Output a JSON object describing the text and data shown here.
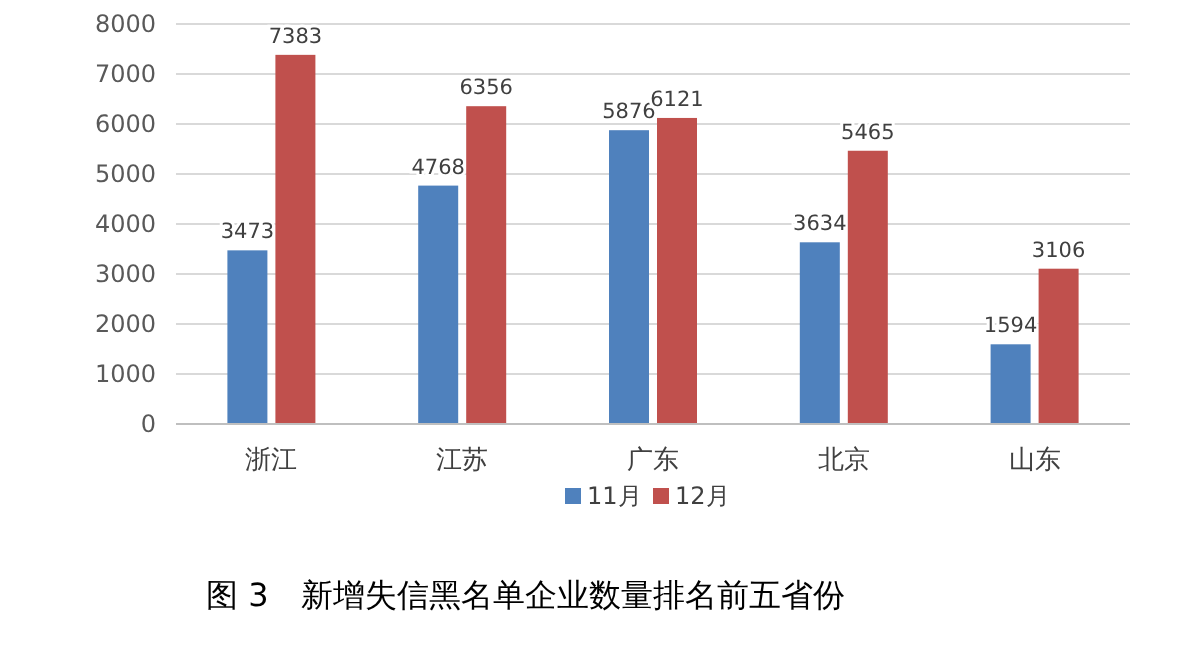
{
  "chart_data": {
    "type": "bar",
    "title": "图 3　新增失信黑名单企业数量排名前五省份",
    "categories": [
      "浙江",
      "江苏",
      "广东",
      "北京",
      "山东"
    ],
    "series": [
      {
        "name": "11月",
        "color": "#4f81bd",
        "values": [
          3473,
          4768,
          5876,
          3634,
          1594
        ]
      },
      {
        "name": "12月",
        "color": "#c0504d",
        "values": [
          7383,
          6356,
          6121,
          5465,
          3106
        ]
      }
    ],
    "ylim": [
      0,
      8000
    ],
    "yticks": [
      0,
      1000,
      2000,
      3000,
      4000,
      5000,
      6000,
      7000,
      8000
    ],
    "grid": "y",
    "data_labels": true,
    "legend": "bottom"
  }
}
